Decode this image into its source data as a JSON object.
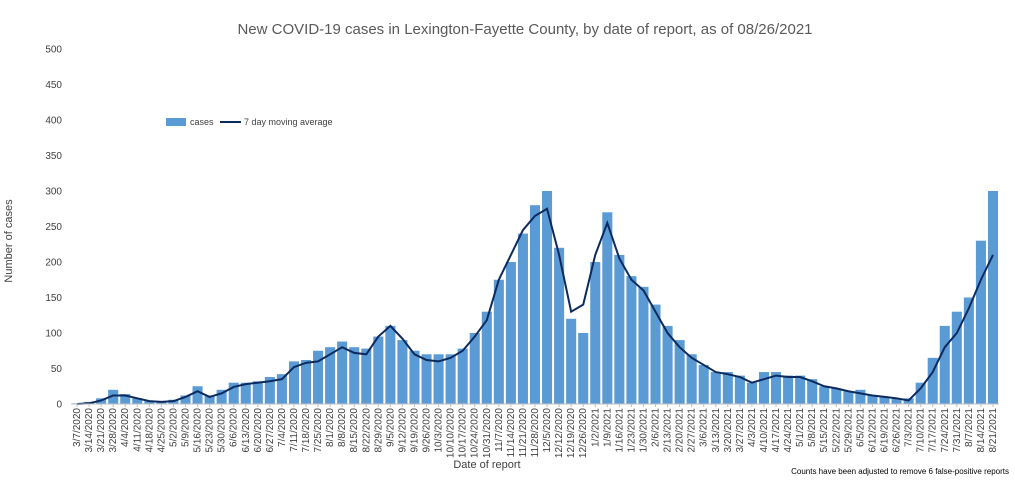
{
  "chart_data": {
    "type": "bar",
    "title": "New COVID-19 cases in Lexington-Fayette County, by date of report, as of 08/26/2021",
    "xlabel": "Date of report",
    "ylabel": "Number of cases",
    "ylim": [
      0,
      500
    ],
    "yticks": [
      0,
      50,
      100,
      150,
      200,
      250,
      300,
      350,
      400,
      450,
      500
    ],
    "grid": false,
    "legend_position": "top-left",
    "footnote": "Counts have been adjusted to remove 6 false-positive reports",
    "colors": {
      "cases": "#5B9BD5",
      "moving_average": "#0D2A5E"
    },
    "x_tick_labels": [
      "3/7/2020",
      "3/14/2020",
      "3/21/2020",
      "3/28/2020",
      "4/4/2020",
      "4/11/2020",
      "4/18/2020",
      "4/25/2020",
      "5/2/2020",
      "5/9/2020",
      "5/16/2020",
      "5/23/2020",
      "5/30/2020",
      "6/6/2020",
      "6/13/2020",
      "6/20/2020",
      "6/27/2020",
      "7/4/2020",
      "7/11/2020",
      "7/18/2020",
      "7/25/2020",
      "8/1/2020",
      "8/8/2020",
      "8/15/2020",
      "8/22/2020",
      "8/29/2020",
      "9/5/2020",
      "9/12/2020",
      "9/19/2020",
      "9/26/2020",
      "10/3/2020",
      "10/10/2020",
      "10/17/2020",
      "10/24/2020",
      "10/31/2020",
      "11/7/2020",
      "11/14/2020",
      "11/21/2020",
      "11/28/2020",
      "12/5/2020",
      "12/12/2020",
      "12/19/2020",
      "12/26/2020",
      "1/2/2021",
      "1/9/2021",
      "1/16/2021",
      "1/23/2021",
      "1/30/2021",
      "2/6/2021",
      "2/13/2021",
      "2/20/2021",
      "2/27/2021",
      "3/6/2021",
      "3/13/2021",
      "3/20/2021",
      "3/27/2021",
      "4/3/2021",
      "4/10/2021",
      "4/17/2021",
      "4/24/2021",
      "5/1/2021",
      "5/8/2021",
      "5/15/2021",
      "5/22/2021",
      "5/29/2021",
      "6/5/2021",
      "6/12/2021",
      "6/19/2021",
      "6/26/2021",
      "7/3/2021",
      "7/10/2021",
      "7/17/2021",
      "7/24/2021",
      "7/31/2021",
      "8/7/2021",
      "8/14/2021",
      "8/21/2021"
    ],
    "series": [
      {
        "name": "cases",
        "x": [
          "3/7/2020",
          "3/14/2020",
          "3/21/2020",
          "3/28/2020",
          "4/4/2020",
          "4/11/2020",
          "4/18/2020",
          "4/25/2020",
          "5/2/2020",
          "5/9/2020",
          "5/16/2020",
          "5/23/2020",
          "5/30/2020",
          "6/6/2020",
          "6/13/2020",
          "6/20/2020",
          "6/27/2020",
          "7/4/2020",
          "7/11/2020",
          "7/18/2020",
          "7/25/2020",
          "8/1/2020",
          "8/8/2020",
          "8/15/2020",
          "8/22/2020",
          "8/29/2020",
          "9/5/2020",
          "9/12/2020",
          "9/19/2020",
          "9/26/2020",
          "10/3/2020",
          "10/10/2020",
          "10/17/2020",
          "10/24/2020",
          "10/31/2020",
          "11/7/2020",
          "11/14/2020",
          "11/21/2020",
          "11/28/2020",
          "12/5/2020",
          "12/12/2020",
          "12/19/2020",
          "12/26/2020",
          "1/2/2021",
          "1/9/2021",
          "1/16/2021",
          "1/23/2021",
          "1/30/2021",
          "2/6/2021",
          "2/13/2021",
          "2/20/2021",
          "2/27/2021",
          "3/6/2021",
          "3/13/2021",
          "3/20/2021",
          "3/27/2021",
          "4/3/2021",
          "4/10/2021",
          "4/17/2021",
          "4/24/2021",
          "5/1/2021",
          "5/8/2021",
          "5/15/2021",
          "5/22/2021",
          "5/29/2021",
          "6/5/2021",
          "6/12/2021",
          "6/19/2021",
          "6/26/2021",
          "7/3/2021",
          "7/10/2021",
          "7/17/2021",
          "7/24/2021",
          "7/31/2021",
          "8/7/2021",
          "8/14/2021",
          "8/21/2021"
        ],
        "values": [
          1,
          3,
          8,
          20,
          14,
          8,
          4,
          3,
          6,
          12,
          25,
          12,
          20,
          30,
          30,
          32,
          38,
          42,
          60,
          62,
          75,
          80,
          88,
          80,
          78,
          95,
          110,
          90,
          75,
          70,
          70,
          70,
          78,
          100,
          130,
          175,
          200,
          240,
          280,
          300,
          220,
          120,
          100,
          200,
          270,
          210,
          180,
          165,
          140,
          110,
          90,
          70,
          55,
          45,
          45,
          40,
          30,
          45,
          45,
          40,
          40,
          35,
          25,
          22,
          18,
          20,
          12,
          10,
          8,
          8,
          30,
          65,
          110,
          130,
          150,
          230,
          300
        ]
      },
      {
        "name": "7 day moving average",
        "x": [
          "3/7/2020",
          "3/14/2020",
          "3/21/2020",
          "3/28/2020",
          "4/4/2020",
          "4/11/2020",
          "4/18/2020",
          "4/25/2020",
          "5/2/2020",
          "5/9/2020",
          "5/16/2020",
          "5/23/2020",
          "5/30/2020",
          "6/6/2020",
          "6/13/2020",
          "6/20/2020",
          "6/27/2020",
          "7/4/2020",
          "7/11/2020",
          "7/18/2020",
          "7/25/2020",
          "8/1/2020",
          "8/8/2020",
          "8/15/2020",
          "8/22/2020",
          "8/29/2020",
          "9/5/2020",
          "9/12/2020",
          "9/19/2020",
          "9/26/2020",
          "10/3/2020",
          "10/10/2020",
          "10/17/2020",
          "10/24/2020",
          "10/31/2020",
          "11/7/2020",
          "11/14/2020",
          "11/21/2020",
          "11/28/2020",
          "12/5/2020",
          "12/12/2020",
          "12/19/2020",
          "12/26/2020",
          "1/2/2021",
          "1/9/2021",
          "1/16/2021",
          "1/23/2021",
          "1/30/2021",
          "2/6/2021",
          "2/13/2021",
          "2/20/2021",
          "2/27/2021",
          "3/6/2021",
          "3/13/2021",
          "3/20/2021",
          "3/27/2021",
          "4/3/2021",
          "4/10/2021",
          "4/17/2021",
          "4/24/2021",
          "5/1/2021",
          "5/8/2021",
          "5/15/2021",
          "5/22/2021",
          "5/29/2021",
          "6/5/2021",
          "6/12/2021",
          "6/19/2021",
          "6/26/2021",
          "7/3/2021",
          "7/10/2021",
          "7/17/2021",
          "7/24/2021",
          "7/31/2021",
          "8/7/2021",
          "8/14/2021",
          "8/21/2021"
        ],
        "values": [
          0,
          1,
          5,
          12,
          12,
          8,
          4,
          3,
          4,
          10,
          18,
          10,
          15,
          24,
          28,
          30,
          32,
          35,
          52,
          58,
          60,
          70,
          80,
          72,
          70,
          95,
          110,
          92,
          70,
          62,
          60,
          65,
          75,
          95,
          118,
          175,
          210,
          245,
          265,
          275,
          210,
          130,
          140,
          210,
          255,
          205,
          175,
          160,
          130,
          100,
          80,
          65,
          55,
          45,
          42,
          38,
          30,
          35,
          40,
          38,
          38,
          32,
          25,
          22,
          18,
          15,
          12,
          10,
          8,
          5,
          22,
          45,
          80,
          100,
          135,
          175,
          210
        ]
      }
    ]
  }
}
